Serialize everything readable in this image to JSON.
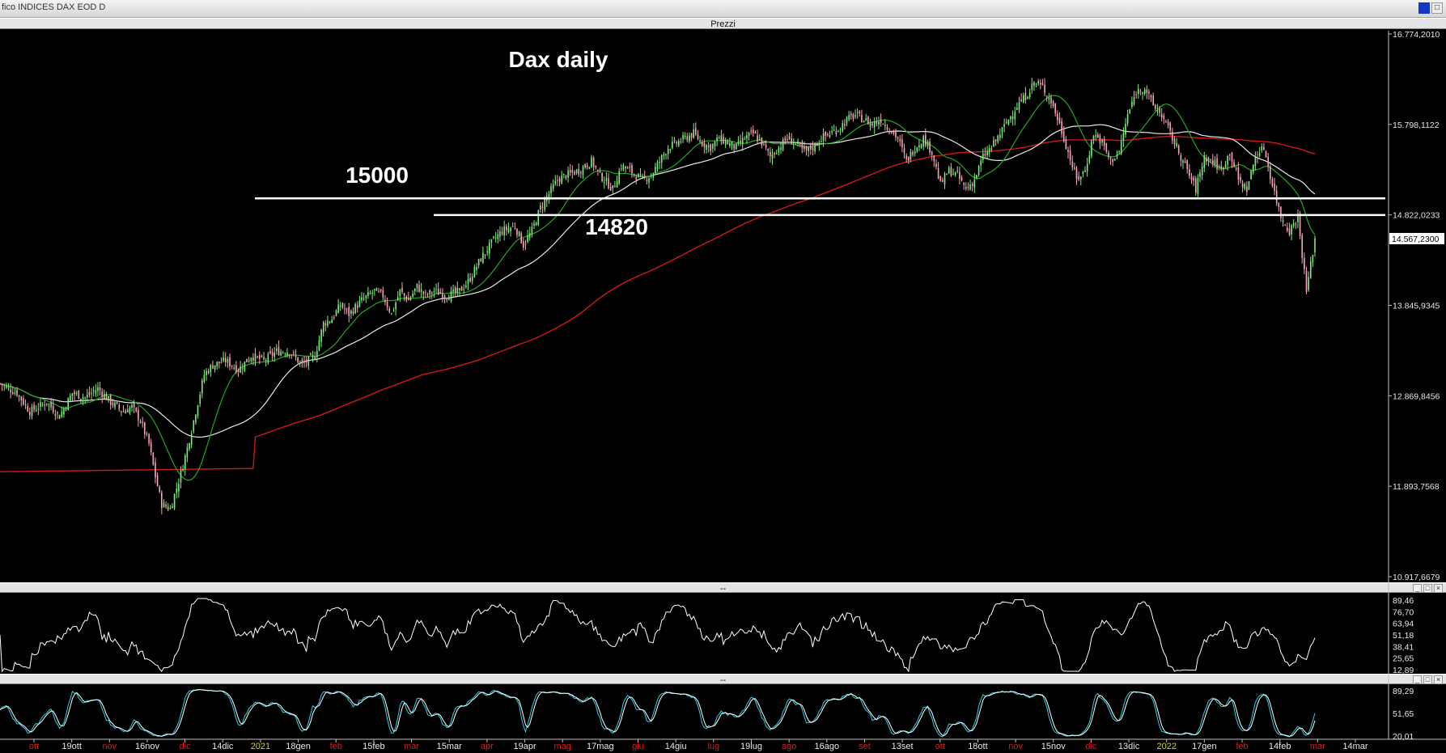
{
  "window": {
    "title": "fico INDICES DAX EOD D",
    "pane_main_label": "Prezzi",
    "pane_sep": "--",
    "buttons": [
      "_",
      "□",
      "×"
    ]
  },
  "colors": {
    "background": "#000000",
    "bull": "#7cf07c",
    "bear": "#f7a6b5",
    "ma_fast": "#1fa81f",
    "ma_mid": "#e8e8e8",
    "ma_slow": "#d01818",
    "osc": "#ffffff",
    "stoch_k": "#2ad0e8",
    "stoch_d": "#ffffff",
    "level_line": "#ffffff",
    "date_month": "#d8cd2e",
    "date_week": "#e8e8e8",
    "date_marked": "#e01818"
  },
  "chart_data": [
    {
      "type": "candlestick",
      "title": "Dax daily",
      "ylim": [
        10917.6679,
        16774.201
      ],
      "y_ticks": [
        "16.774,2010",
        "15.798,1122",
        "14.822,0233",
        "13.845,9345",
        "12.869,8456",
        "11.893,7568",
        "10.917,6679"
      ],
      "last_price_label": "14.567,2300",
      "annotations": [
        {
          "label": "15000",
          "value": 15000,
          "from": "14dic"
        },
        {
          "label": "14820",
          "value": 14820,
          "from": "15mar"
        }
      ],
      "x_labels": [
        "ott",
        "19ott",
        "nov",
        "16nov",
        "dic",
        "14dic",
        "2021",
        "18gen",
        "feb",
        "15feb",
        "mar",
        "15mar",
        "apr",
        "19apr",
        "mag",
        "17mag",
        "giu",
        "14giu",
        "lug",
        "19lug",
        "ago",
        "16ago",
        "set",
        "13set",
        "ott",
        "18ott",
        "nov",
        "15nov",
        "dic",
        "13dic",
        "2022",
        "17gen",
        "feb",
        "14feb",
        "mar",
        "14mar"
      ],
      "x_label_kinds": [
        "marked",
        "week",
        "marked",
        "week",
        "marked",
        "week",
        "month",
        "week",
        "marked",
        "week",
        "marked",
        "week",
        "marked",
        "week",
        "marked",
        "week",
        "marked",
        "week",
        "marked",
        "week",
        "marked",
        "week",
        "marked",
        "week",
        "marked",
        "week",
        "marked",
        "week",
        "marked",
        "week",
        "month",
        "week",
        "marked",
        "week",
        "marked",
        "week"
      ],
      "closes_path": [
        [
          0,
          13000
        ],
        [
          8,
          12900
        ],
        [
          14,
          12700
        ],
        [
          22,
          12800
        ],
        [
          28,
          12650
        ],
        [
          34,
          12900
        ],
        [
          40,
          12850
        ],
        [
          46,
          12950
        ],
        [
          52,
          12800
        ],
        [
          58,
          12700
        ],
        [
          62,
          12750
        ],
        [
          66,
          12600
        ],
        [
          70,
          12350
        ],
        [
          73,
          12000
        ],
        [
          76,
          11700
        ],
        [
          80,
          11650
        ],
        [
          84,
          11950
        ],
        [
          88,
          12300
        ],
        [
          92,
          12700
        ],
        [
          96,
          13100
        ],
        [
          100,
          13200
        ],
        [
          106,
          13250
        ],
        [
          112,
          13150
        ],
        [
          118,
          13300
        ],
        [
          124,
          13250
        ],
        [
          130,
          13350
        ],
        [
          136,
          13350
        ],
        [
          142,
          13200
        ],
        [
          148,
          13300
        ],
        [
          152,
          13650
        ],
        [
          156,
          13700
        ],
        [
          160,
          13850
        ],
        [
          164,
          13750
        ],
        [
          170,
          13900
        ],
        [
          176,
          14000
        ],
        [
          180,
          13950
        ],
        [
          184,
          13750
        ],
        [
          188,
          14000
        ],
        [
          192,
          13900
        ],
        [
          196,
          14050
        ],
        [
          200,
          13950
        ],
        [
          204,
          14000
        ],
        [
          210,
          13950
        ],
        [
          216,
          14000
        ],
        [
          220,
          14100
        ],
        [
          226,
          14350
        ],
        [
          232,
          14550
        ],
        [
          236,
          14650
        ],
        [
          242,
          14700
        ],
        [
          246,
          14500
        ],
        [
          250,
          14650
        ],
        [
          254,
          14900
        ],
        [
          258,
          15050
        ],
        [
          262,
          15200
        ],
        [
          266,
          15250
        ],
        [
          272,
          15300
        ],
        [
          278,
          15400
        ],
        [
          282,
          15250
        ],
        [
          288,
          15100
        ],
        [
          292,
          15350
        ],
        [
          296,
          15300
        ],
        [
          302,
          15200
        ],
        [
          306,
          15250
        ],
        [
          310,
          15400
        ],
        [
          314,
          15550
        ],
        [
          318,
          15600
        ],
        [
          322,
          15650
        ],
        [
          326,
          15700
        ],
        [
          330,
          15600
        ],
        [
          334,
          15550
        ],
        [
          338,
          15650
        ],
        [
          342,
          15600
        ],
        [
          346,
          15550
        ],
        [
          350,
          15650
        ],
        [
          354,
          15700
        ],
        [
          358,
          15600
        ],
        [
          362,
          15450
        ],
        [
          366,
          15550
        ],
        [
          370,
          15650
        ],
        [
          374,
          15600
        ],
        [
          378,
          15500
        ],
        [
          382,
          15550
        ],
        [
          386,
          15650
        ],
        [
          390,
          15700
        ],
        [
          394,
          15750
        ],
        [
          398,
          15850
        ],
        [
          402,
          15900
        ],
        [
          406,
          15850
        ],
        [
          410,
          15800
        ],
        [
          414,
          15850
        ],
        [
          418,
          15750
        ],
        [
          422,
          15650
        ],
        [
          426,
          15400
        ],
        [
          430,
          15550
        ],
        [
          434,
          15650
        ],
        [
          438,
          15500
        ],
        [
          442,
          15150
        ],
        [
          446,
          15300
        ],
        [
          450,
          15250
        ],
        [
          454,
          15100
        ],
        [
          458,
          15200
        ],
        [
          462,
          15450
        ],
        [
          466,
          15550
        ],
        [
          470,
          15700
        ],
        [
          474,
          15850
        ],
        [
          478,
          16000
        ],
        [
          482,
          16100
        ],
        [
          486,
          16250
        ],
        [
          490,
          16200
        ],
        [
          494,
          16050
        ],
        [
          498,
          15800
        ],
        [
          502,
          15500
        ],
        [
          506,
          15200
        ],
        [
          510,
          15300
        ],
        [
          514,
          15700
        ],
        [
          518,
          15600
        ],
        [
          522,
          15400
        ],
        [
          526,
          15500
        ],
        [
          530,
          15900
        ],
        [
          534,
          16150
        ],
        [
          538,
          16200
        ],
        [
          542,
          16000
        ],
        [
          546,
          15900
        ],
        [
          550,
          15700
        ],
        [
          554,
          15500
        ],
        [
          558,
          15300
        ],
        [
          562,
          15100
        ],
        [
          566,
          15450
        ],
        [
          570,
          15400
        ],
        [
          574,
          15300
        ],
        [
          578,
          15500
        ],
        [
          582,
          15200
        ],
        [
          586,
          15100
        ],
        [
          590,
          15450
        ],
        [
          594,
          15550
        ],
        [
          598,
          15150
        ],
        [
          602,
          14800
        ],
        [
          606,
          14650
        ],
        [
          610,
          14800
        ],
        [
          614,
          14000
        ],
        [
          618,
          14567
        ]
      ],
      "last_index": 618,
      "osc_ylim": [
        0,
        100
      ],
      "osc_ticks": [
        "89,46",
        "76,70",
        "63,94",
        "51,18",
        "38,41",
        "25,65",
        "12,89"
      ],
      "stoch_ticks": [
        "89,29",
        "51,65",
        "20,01"
      ]
    }
  ]
}
